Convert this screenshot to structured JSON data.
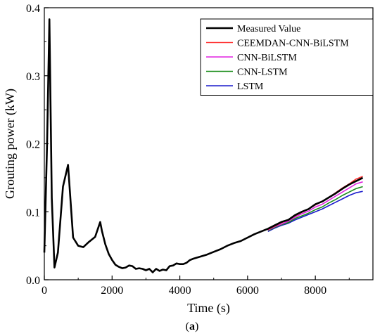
{
  "chart_data": {
    "type": "line",
    "title": "",
    "xlabel": "Time (s)",
    "ylabel": "Grouting power (kW)",
    "xlim": [
      0,
      9700
    ],
    "ylim": [
      0,
      0.4
    ],
    "xticks": [
      0,
      2000,
      4000,
      6000,
      8000
    ],
    "yticks": [
      0.0,
      0.1,
      0.2,
      0.3,
      0.4
    ],
    "xtick_labels": [
      "0",
      "2000",
      "4000",
      "6000",
      "8000"
    ],
    "ytick_labels": [
      "0.0",
      "0.1",
      "0.2",
      "0.3",
      "0.4"
    ],
    "grid": false,
    "legend_position": "top-right",
    "caption": {
      "open": "(",
      "letter": "a",
      "close": ")"
    },
    "series": [
      {
        "name": "Measured Value",
        "color": "#000000",
        "x": [
          0,
          80,
          150,
          220,
          300,
          400,
          550,
          700,
          850,
          1000,
          1150,
          1300,
          1500,
          1650,
          1700,
          1800,
          1900,
          2000,
          2100,
          2200,
          2300,
          2400,
          2500,
          2600,
          2700,
          2800,
          2900,
          3000,
          3100,
          3200,
          3300,
          3400,
          3500,
          3600,
          3700,
          3800,
          3900,
          4000,
          4100,
          4200,
          4300,
          4400,
          4600,
          4800,
          5000,
          5200,
          5400,
          5600,
          5800,
          6000,
          6200,
          6400,
          6600,
          6800,
          7000,
          7200,
          7400,
          7600,
          7800,
          8000,
          8200,
          8400,
          8600,
          8800,
          9000,
          9200,
          9400
        ],
        "y": [
          0.04,
          0.2,
          0.383,
          0.12,
          0.018,
          0.04,
          0.137,
          0.169,
          0.062,
          0.05,
          0.048,
          0.055,
          0.063,
          0.085,
          0.072,
          0.052,
          0.038,
          0.029,
          0.022,
          0.019,
          0.017,
          0.018,
          0.021,
          0.02,
          0.016,
          0.017,
          0.016,
          0.014,
          0.016,
          0.011,
          0.016,
          0.013,
          0.015,
          0.014,
          0.02,
          0.021,
          0.024,
          0.023,
          0.023,
          0.025,
          0.029,
          0.031,
          0.034,
          0.037,
          0.041,
          0.045,
          0.05,
          0.054,
          0.057,
          0.062,
          0.067,
          0.071,
          0.075,
          0.08,
          0.085,
          0.088,
          0.095,
          0.1,
          0.104,
          0.111,
          0.115,
          0.121,
          0.127,
          0.134,
          0.14,
          0.145,
          0.15
        ]
      },
      {
        "name": "CEEMDAN-CNN-BiLSTM",
        "color": "#ff3333",
        "x": [
          6600,
          6800,
          7000,
          7200,
          7400,
          7600,
          7800,
          8000,
          8200,
          8400,
          8600,
          8800,
          9000,
          9200,
          9400
        ],
        "y": [
          0.074,
          0.079,
          0.084,
          0.088,
          0.094,
          0.099,
          0.104,
          0.11,
          0.115,
          0.121,
          0.128,
          0.135,
          0.141,
          0.148,
          0.152
        ]
      },
      {
        "name": "CNN-BiLSTM",
        "color": "#e020e0",
        "x": [
          6600,
          6800,
          7000,
          7200,
          7400,
          7600,
          7800,
          8000,
          8200,
          8400,
          8600,
          8800,
          9000,
          9200,
          9400
        ],
        "y": [
          0.073,
          0.078,
          0.082,
          0.086,
          0.092,
          0.097,
          0.101,
          0.107,
          0.111,
          0.117,
          0.123,
          0.129,
          0.135,
          0.141,
          0.144
        ]
      },
      {
        "name": "CNN-LSTM",
        "color": "#1a8c1a",
        "x": [
          6600,
          6800,
          7000,
          7200,
          7400,
          7600,
          7800,
          8000,
          8200,
          8400,
          8600,
          8800,
          9000,
          9200,
          9400
        ],
        "y": [
          0.072,
          0.077,
          0.081,
          0.084,
          0.09,
          0.094,
          0.098,
          0.103,
          0.107,
          0.113,
          0.118,
          0.124,
          0.129,
          0.134,
          0.137
        ]
      },
      {
        "name": "LSTM",
        "color": "#1a1acc",
        "x": [
          6600,
          6800,
          7000,
          7200,
          7400,
          7600,
          7800,
          8000,
          8200,
          8400,
          8600,
          8800,
          9000,
          9200,
          9400
        ],
        "y": [
          0.071,
          0.076,
          0.08,
          0.083,
          0.088,
          0.092,
          0.096,
          0.1,
          0.104,
          0.109,
          0.114,
          0.119,
          0.124,
          0.128,
          0.13
        ]
      }
    ]
  }
}
